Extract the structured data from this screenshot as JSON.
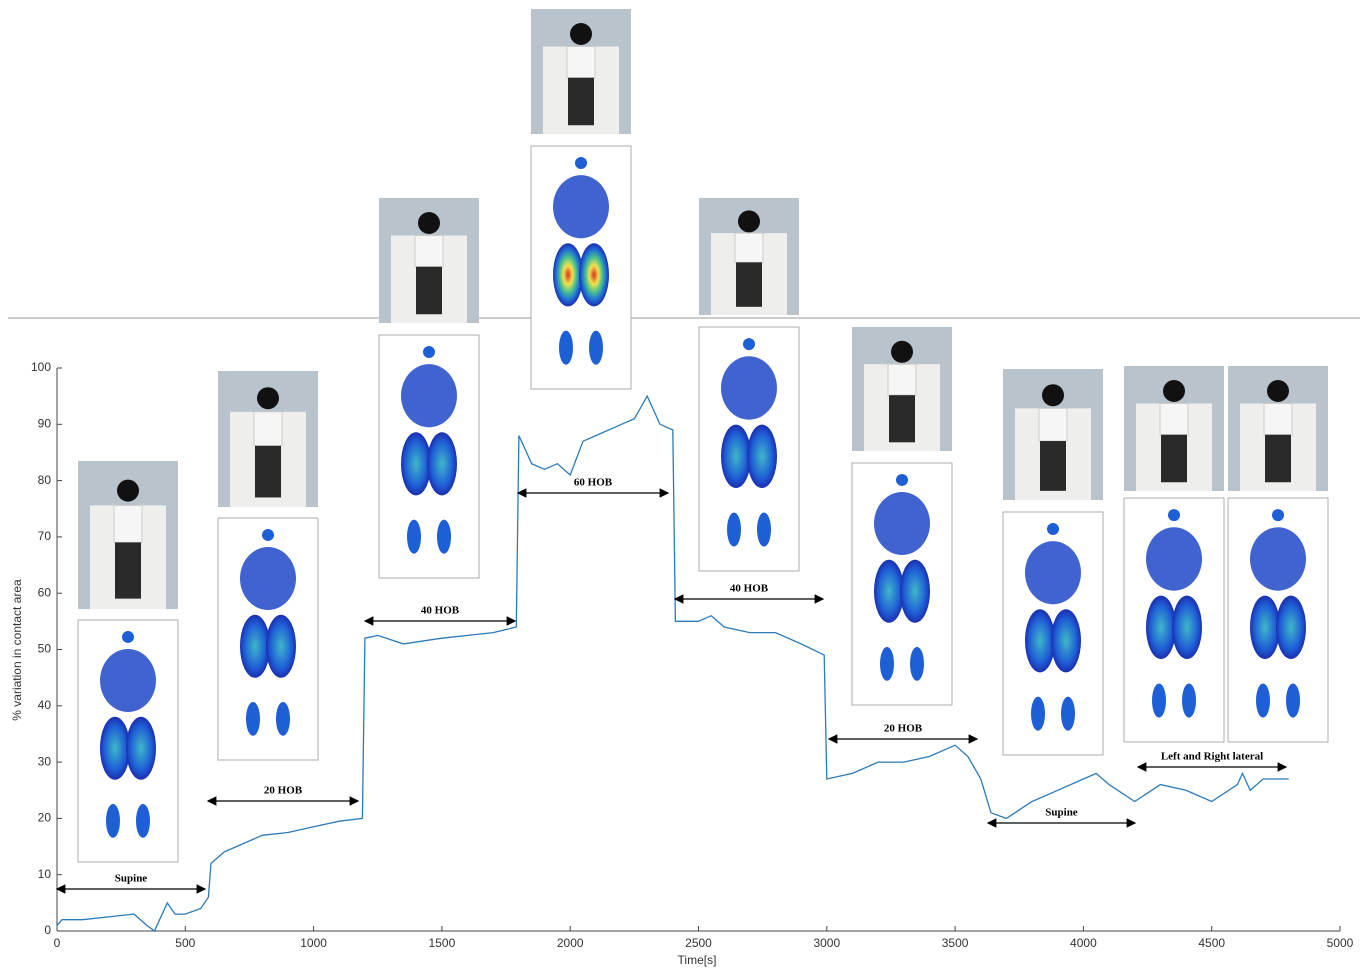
{
  "chart_data": {
    "type": "line",
    "x_label": "Time[s]",
    "y_label": "% variation in contact area",
    "x": [
      0,
      20,
      100,
      200,
      300,
      350,
      380,
      400,
      430,
      460,
      500,
      560,
      590,
      600,
      650,
      700,
      800,
      900,
      1000,
      1100,
      1190,
      1200,
      1250,
      1350,
      1500,
      1700,
      1790,
      1800,
      1850,
      1900,
      1950,
      2000,
      2050,
      2100,
      2200,
      2250,
      2300,
      2350,
      2400,
      2410,
      2500,
      2550,
      2600,
      2700,
      2800,
      2900,
      2990,
      3000,
      3100,
      3200,
      3300,
      3400,
      3500,
      3550,
      3600,
      3620,
      3640,
      3700,
      3800,
      3900,
      4000,
      4050,
      4100,
      4200,
      4300,
      4400,
      4500,
      4600,
      4620,
      4650,
      4700,
      4800
    ],
    "series": [
      {
        "color": "#2b7bba",
        "values": [
          1,
          2,
          2,
          2.5,
          3,
          1,
          0,
          2,
          5,
          3,
          3,
          4,
          6,
          12,
          14,
          15,
          17,
          17.5,
          18.5,
          19.5,
          20,
          52,
          52.5,
          51,
          52,
          53,
          54,
          88,
          83,
          82,
          83,
          81,
          87,
          88,
          90,
          91,
          95,
          90,
          89,
          55,
          55,
          56,
          54,
          53,
          53,
          51,
          49,
          27,
          28,
          30,
          30,
          31,
          33,
          31,
          27,
          24,
          21,
          20,
          23,
          25,
          27,
          28,
          26,
          23,
          26,
          25,
          23,
          26,
          28,
          25,
          27,
          27
        ]
      }
    ],
    "xlim": [
      0,
      5000
    ],
    "xticks": [
      0,
      500,
      1000,
      1500,
      2000,
      2500,
      3000,
      3500,
      4000,
      4500,
      5000
    ],
    "ylim": [
      0,
      100
    ],
    "yticks": [
      0,
      10,
      20,
      30,
      40,
      50,
      60,
      70,
      80,
      90,
      100
    ],
    "annotations": [
      "Supine",
      "20 HOB",
      "40 HOB",
      "60 HOB",
      "40 HOB",
      "20 HOB",
      "Supine",
      "Left and Right lateral"
    ]
  }
}
